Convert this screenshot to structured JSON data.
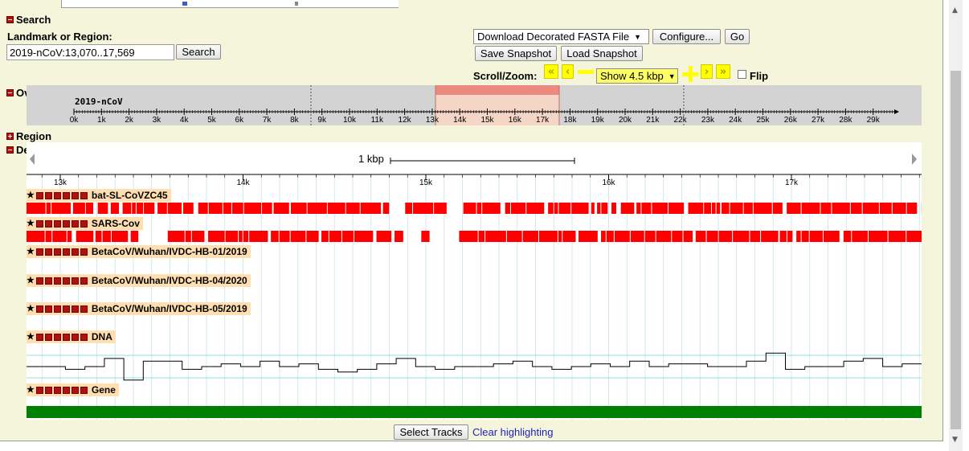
{
  "search": {
    "header": "Search",
    "landmark_label": "Landmark or Region:",
    "landmark_value": "2019-nCoV:13,070..17,569",
    "search_button": "Search"
  },
  "toolbar": {
    "download_select": "Download Decorated FASTA File",
    "configure_button": "Configure...",
    "go_button": "Go",
    "save_snapshot": "Save Snapshot",
    "load_snapshot": "Load Snapshot",
    "scroll_zoom_label": "Scroll/Zoom:",
    "zoom_select": "Show 4.5 kbp",
    "flip_label": "Flip"
  },
  "overview": {
    "header": "Overview",
    "sequence_name": "2019-nCoV",
    "ticks": [
      "0k",
      "1k",
      "2k",
      "3k",
      "4k",
      "5k",
      "6k",
      "7k",
      "8k",
      "9k",
      "10k",
      "11k",
      "12k",
      "13k",
      "14k",
      "15k",
      "16k",
      "17k",
      "18k",
      "19k",
      "20k",
      "21k",
      "22k",
      "23k",
      "24k",
      "25k",
      "26k",
      "27k",
      "28k",
      "29k"
    ]
  },
  "region": {
    "header": "Region"
  },
  "details": {
    "header": "Details",
    "scale_label": "1 kbp",
    "ticks": [
      "13k",
      "14k",
      "15k",
      "16k",
      "17k"
    ]
  },
  "tracks": [
    {
      "name": "bat-SL-CoVZC45"
    },
    {
      "name": "SARS-Cov"
    },
    {
      "name": "BetaCoV/Wuhan/IVDC-HB-01/2019"
    },
    {
      "name": "BetaCoV/Wuhan/IVDC-HB-04/2020"
    },
    {
      "name": "BetaCoV/Wuhan/IVDC-HB-05/2019"
    },
    {
      "name": "DNA"
    },
    {
      "name": "Gene"
    }
  ],
  "footer": {
    "select_tracks": "Select Tracks",
    "clear_highlighting": "Clear highlighting"
  },
  "colors": {
    "alignment": "#ff0000",
    "gene": "#008000",
    "label_bg": "#ffdfb0",
    "panel_bg": "#f5f5dc",
    "highlight": "#f08080"
  }
}
